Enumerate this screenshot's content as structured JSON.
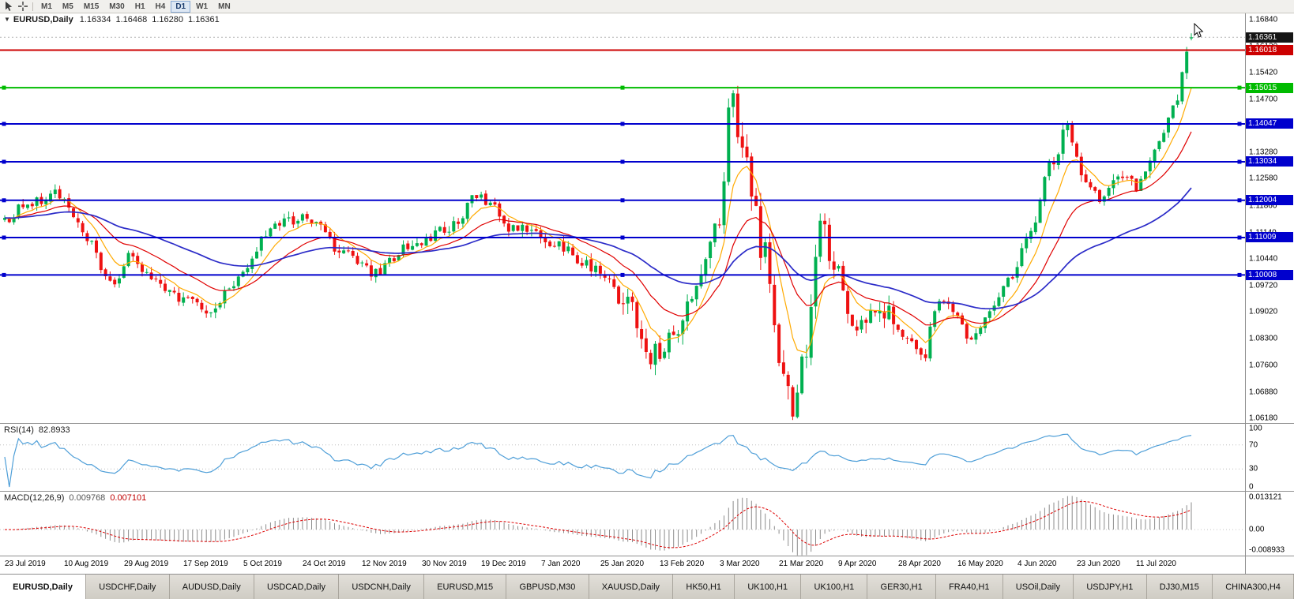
{
  "toolbar": {
    "icons": [
      {
        "name": "cursor-icon"
      },
      {
        "name": "crosshair-icon"
      }
    ],
    "timeframes": [
      {
        "label": "M1",
        "active": false
      },
      {
        "label": "M5",
        "active": false
      },
      {
        "label": "M15",
        "active": false
      },
      {
        "label": "M30",
        "active": false
      },
      {
        "label": "H1",
        "active": false
      },
      {
        "label": "H4",
        "active": false
      },
      {
        "label": "D1",
        "active": true
      },
      {
        "label": "W1",
        "active": false
      },
      {
        "label": "MN",
        "active": false
      }
    ]
  },
  "chart": {
    "title": {
      "dropdown_icon": "▼",
      "symbol": "EURUSD,Daily",
      "open": "1.16334",
      "high": "1.16468",
      "low": "1.16280",
      "close": "1.16361"
    },
    "price_scale": {
      "min": 1.0605,
      "max": 1.17,
      "ticks": [
        "1.16840",
        "1.16120",
        "1.15420",
        "1.14700",
        "1.13980",
        "1.13280",
        "1.12580",
        "1.11860",
        "1.11140",
        "1.10440",
        "1.09720",
        "1.09020",
        "1.08300",
        "1.07600",
        "1.06880",
        "1.06180"
      ]
    },
    "current_price": {
      "label": "1.16361",
      "value": 1.16361,
      "box_color": "#151515"
    },
    "hlines": [
      {
        "label": "1.16018",
        "value": 1.16018,
        "color": "#cc0000",
        "handles": false
      },
      {
        "label": "1.15015",
        "value": 1.15015,
        "color": "#00bb00",
        "handles": true
      },
      {
        "label": "1.14047",
        "value": 1.14047,
        "color": "#0000cd",
        "handles": true
      },
      {
        "label": "1.13034",
        "value": 1.13034,
        "color": "#0000cd",
        "handles": true
      },
      {
        "label": "1.12004",
        "value": 1.12004,
        "color": "#0000cd",
        "handles": true
      },
      {
        "label": "1.11009",
        "value": 1.11009,
        "color": "#0000cd",
        "handles": true
      },
      {
        "label": "1.10008",
        "value": 1.10008,
        "color": "#0000cd",
        "handles": true
      }
    ],
    "dates": [
      "23 Jul 2019",
      "10 Aug 2019",
      "29 Aug 2019",
      "17 Sep 2019",
      "5 Oct 2019",
      "24 Oct 2019",
      "12 Nov 2019",
      "30 Nov 2019",
      "19 Dec 2019",
      "7 Jan 2020",
      "25 Jan 2020",
      "13 Feb 2020",
      "3 Mar 2020",
      "21 Mar 2020",
      "9 Apr 2020",
      "28 Apr 2020",
      "16 May 2020",
      "4 Jun 2020",
      "23 Jun 2020",
      "11 Jul 2020"
    ]
  },
  "rsi": {
    "title": "RSI(14)",
    "value": "82.8933",
    "line_color": "#4f9fd8",
    "levels": [
      70,
      30
    ],
    "ticks": [
      {
        "label": "100",
        "value": 100
      },
      {
        "label": "70",
        "value": 70
      },
      {
        "label": "30",
        "value": 30
      },
      {
        "label": "0",
        "value": 0
      }
    ]
  },
  "macd": {
    "title": "MACD(12,26,9)",
    "main_value": "0.009768",
    "signal_value": "0.007101",
    "histogram_color": "#8c8c8c",
    "signal_color": "#dd0000",
    "range": {
      "max": 0.0138,
      "min": -0.0095
    },
    "ticks": {
      "max": "0.013121",
      "zero": "0.00",
      "min": "-0.008933"
    }
  },
  "tabs": [
    {
      "label": "EURUSD,Daily",
      "active": true
    },
    {
      "label": "USDCHF,Daily",
      "active": false
    },
    {
      "label": "AUDUSD,Daily",
      "active": false
    },
    {
      "label": "USDCAD,Daily",
      "active": false
    },
    {
      "label": "USDCNH,Daily",
      "active": false
    },
    {
      "label": "EURUSD,M15",
      "active": false
    },
    {
      "label": "GBPUSD,M30",
      "active": false
    },
    {
      "label": "XAUUSD,Daily",
      "active": false
    },
    {
      "label": "HK50,H1",
      "active": false
    },
    {
      "label": "UK100,H1",
      "active": false
    },
    {
      "label": "UK100,H1",
      "active": false
    },
    {
      "label": "GER30,H1",
      "active": false
    },
    {
      "label": "FRA40,H1",
      "active": false
    },
    {
      "label": "USOil,Daily",
      "active": false
    },
    {
      "label": "USDJPY,H1",
      "active": false
    },
    {
      "label": "DJ30,M15",
      "active": false
    },
    {
      "label": "CHINA300,H4",
      "active": false
    }
  ],
  "chart_data": {
    "type": "candlestick",
    "symbol": "EURUSD",
    "timeframe": "Daily",
    "bars": 260,
    "ylim": [
      1.0605,
      1.17
    ],
    "x_labels": [
      "23 Jul 2019",
      "10 Aug 2019",
      "29 Aug 2019",
      "17 Sep 2019",
      "5 Oct 2019",
      "24 Oct 2019",
      "12 Nov 2019",
      "30 Nov 2019",
      "19 Dec 2019",
      "7 Jan 2020",
      "25 Jan 2020",
      "13 Feb 2020",
      "3 Mar 2020",
      "21 Mar 2020",
      "9 Apr 2020",
      "28 Apr 2020",
      "16 May 2020",
      "4 Jun 2020",
      "23 Jun 2020",
      "11 Jul 2020"
    ],
    "last_bar": {
      "open": 1.16334,
      "high": 1.16468,
      "low": 1.1628,
      "close": 1.16361
    },
    "close_path_anchors": [
      [
        0.0,
        1.115
      ],
      [
        0.02,
        1.119
      ],
      [
        0.045,
        1.1215
      ],
      [
        0.065,
        1.112
      ],
      [
        0.09,
        1.0972
      ],
      [
        0.105,
        1.1045
      ],
      [
        0.125,
        1.0985
      ],
      [
        0.155,
        1.0926
      ],
      [
        0.17,
        1.09
      ],
      [
        0.195,
        1.0985
      ],
      [
        0.225,
        1.113
      ],
      [
        0.255,
        1.1155
      ],
      [
        0.285,
        1.1065
      ],
      [
        0.31,
        1.1005
      ],
      [
        0.34,
        1.1075
      ],
      [
        0.37,
        1.1115
      ],
      [
        0.4,
        1.121
      ],
      [
        0.43,
        1.1125
      ],
      [
        0.465,
        1.1085
      ],
      [
        0.495,
        1.1025
      ],
      [
        0.525,
        1.092
      ],
      [
        0.545,
        1.0788
      ],
      [
        0.565,
        1.084
      ],
      [
        0.585,
        1.0995
      ],
      [
        0.6,
        1.114
      ],
      [
        0.613,
        1.1455
      ],
      [
        0.625,
        1.128
      ],
      [
        0.64,
        1.106
      ],
      [
        0.655,
        1.078
      ],
      [
        0.663,
        1.065
      ],
      [
        0.675,
        1.081
      ],
      [
        0.688,
        1.112
      ],
      [
        0.7,
        1.103
      ],
      [
        0.715,
        1.0835
      ],
      [
        0.73,
        1.088
      ],
      [
        0.745,
        1.091
      ],
      [
        0.76,
        1.083
      ],
      [
        0.773,
        1.0772
      ],
      [
        0.788,
        1.0945
      ],
      [
        0.802,
        1.089
      ],
      [
        0.815,
        1.0822
      ],
      [
        0.832,
        1.092
      ],
      [
        0.85,
        1.0995
      ],
      [
        0.865,
        1.1135
      ],
      [
        0.882,
        1.129
      ],
      [
        0.895,
        1.1395
      ],
      [
        0.91,
        1.1255
      ],
      [
        0.925,
        1.1205
      ],
      [
        0.94,
        1.127
      ],
      [
        0.955,
        1.1235
      ],
      [
        0.97,
        1.133
      ],
      [
        0.985,
        1.1452
      ],
      [
        1.0,
        1.1636
      ]
    ],
    "volatility_zones": [
      [
        0.52,
        0.75,
        1.8
      ],
      [
        0.6,
        0.7,
        2.4
      ],
      [
        0.86,
        1.0,
        1.15
      ]
    ],
    "noise": {
      "close": 0.0032,
      "wick": 0.0016,
      "seed": 1234567
    },
    "up_color": "#00b050",
    "down_color": "#ee1111",
    "moving_averages": [
      {
        "period": 8,
        "color": "#ffaa00"
      },
      {
        "period": 21,
        "color": "#e00000"
      },
      {
        "period": 55,
        "color": "#2b2bc8"
      }
    ],
    "indicators": {
      "rsi": {
        "period": 14,
        "last": 82.8933
      },
      "macd": {
        "fast": 12,
        "slow": 26,
        "signal": 9,
        "last_main": 0.009768,
        "last_signal": 0.007101,
        "scale_max": 0.013121,
        "scale_min": -0.008933
      }
    },
    "support_resistance_levels": [
      1.16018,
      1.15015,
      1.14047,
      1.13034,
      1.12004,
      1.11009,
      1.10008
    ]
  }
}
